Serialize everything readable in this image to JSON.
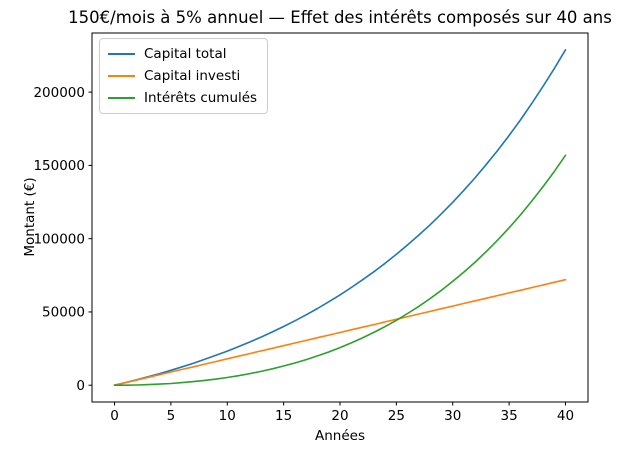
{
  "chart_data": {
    "type": "line",
    "title": "150€/mois à 5% annuel — Effet des intérêts composés sur 40 ans",
    "xlabel": "Années",
    "ylabel": "Montant (€)",
    "x": [
      0,
      1,
      2,
      3,
      4,
      5,
      6,
      7,
      8,
      9,
      10,
      11,
      12,
      13,
      14,
      15,
      16,
      17,
      18,
      19,
      20,
      21,
      22,
      23,
      24,
      25,
      26,
      27,
      28,
      29,
      30,
      31,
      32,
      33,
      34,
      35,
      36,
      37,
      38,
      39,
      40
    ],
    "series": [
      {
        "name": "Capital total",
        "color": "#1f77b4",
        "values": [
          0,
          1842,
          3778,
          5813,
          7952,
          10201,
          12565,
          15049,
          17661,
          20407,
          23292,
          26326,
          29515,
          32867,
          36390,
          40093,
          43986,
          48078,
          52380,
          56902,
          61654,
          66650,
          71902,
          77422,
          83225,
          89325,
          95736,
          102476,
          109560,
          117007,
          124835,
          133063,
          141712,
          150804,
          160361,
          170406,
          180965,
          192065,
          203732,
          215996,
          228888
        ]
      },
      {
        "name": "Capital investi",
        "color": "#ff7f0e",
        "values": [
          0,
          1800,
          3600,
          5400,
          7200,
          9000,
          10800,
          12600,
          14400,
          16200,
          18000,
          19800,
          21600,
          23400,
          25200,
          27000,
          28800,
          30600,
          32400,
          34200,
          36000,
          37800,
          39600,
          41400,
          43200,
          45000,
          46800,
          48600,
          50400,
          52200,
          54000,
          55800,
          57600,
          59400,
          61200,
          63000,
          64800,
          66600,
          68400,
          70200,
          72000
        ]
      },
      {
        "name": "Intérêts cumulés",
        "color": "#2ca02c",
        "values": [
          0,
          42,
          178,
          413,
          752,
          1201,
          1765,
          2449,
          3261,
          4207,
          5292,
          6526,
          7915,
          9467,
          11190,
          13093,
          15186,
          17478,
          19980,
          22702,
          25654,
          28850,
          32302,
          36022,
          40025,
          44325,
          48936,
          53876,
          59160,
          64807,
          70835,
          77263,
          84112,
          91404,
          99161,
          107406,
          116165,
          125465,
          135332,
          145796,
          156888
        ]
      }
    ],
    "xticks": [
      0,
      5,
      10,
      15,
      20,
      25,
      30,
      35,
      40
    ],
    "yticks": [
      0,
      50000,
      100000,
      150000,
      200000
    ],
    "xlim": [
      -2,
      42
    ],
    "ylim": [
      -11444,
      240332
    ],
    "grid": false,
    "legend_position": "upper left",
    "axis_color": "#000000",
    "background_color": "#ffffff"
  }
}
